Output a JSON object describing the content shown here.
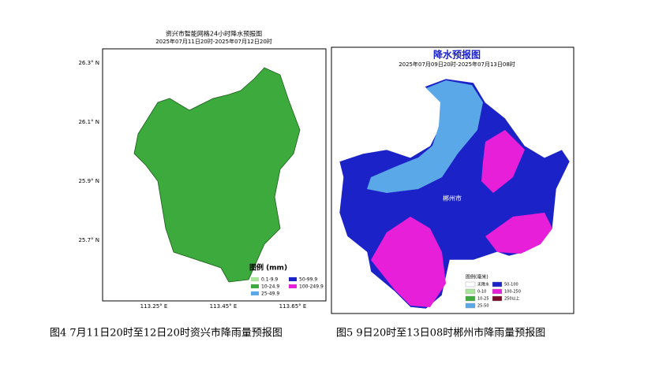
{
  "left_map": {
    "title": "资兴市智能网格24小时降水预报图",
    "subtitle": "2025年07月11日20时-2025年07月12日20时",
    "y_labels": [
      "26.3° N",
      "26.1° N",
      "25.9° N",
      "25.7° N"
    ],
    "x_labels": [
      "113.25° E",
      "113.45° E",
      "113.65° E"
    ],
    "legend_title": "图例 (mm)",
    "legend": [
      {
        "label": "0.1-9.9",
        "color": "#a8e59a"
      },
      {
        "label": "10-24.9",
        "color": "#3daa3d"
      },
      {
        "label": "25-49.9",
        "color": "#5ba8e8"
      },
      {
        "label": "50-99.9",
        "color": "#1b23c8"
      },
      {
        "label": "100-249.9",
        "color": "#e81fd8"
      }
    ]
  },
  "right_map": {
    "title": "降水预报图",
    "subtitle": "2025年07月09日20时-2025年07月13日08时",
    "place": "郴州市",
    "legend_title": "图例(毫米)",
    "legend": [
      {
        "label": "无降水",
        "color": "#ffffff"
      },
      {
        "label": "0-10",
        "color": "#a8e59a"
      },
      {
        "label": "10-25",
        "color": "#3daa3d"
      },
      {
        "label": "25-50",
        "color": "#5ba8e8"
      },
      {
        "label": "50-100",
        "color": "#1b23c8"
      },
      {
        "label": "100-250",
        "color": "#e81fd8"
      },
      {
        "label": "250以上",
        "color": "#7a0a2a"
      }
    ]
  },
  "captions": [
    "图4 7月11日20时至12日20时资兴市降雨量预报图",
    "图5 9日20时至13日08时郴州市降雨量预报图"
  ]
}
